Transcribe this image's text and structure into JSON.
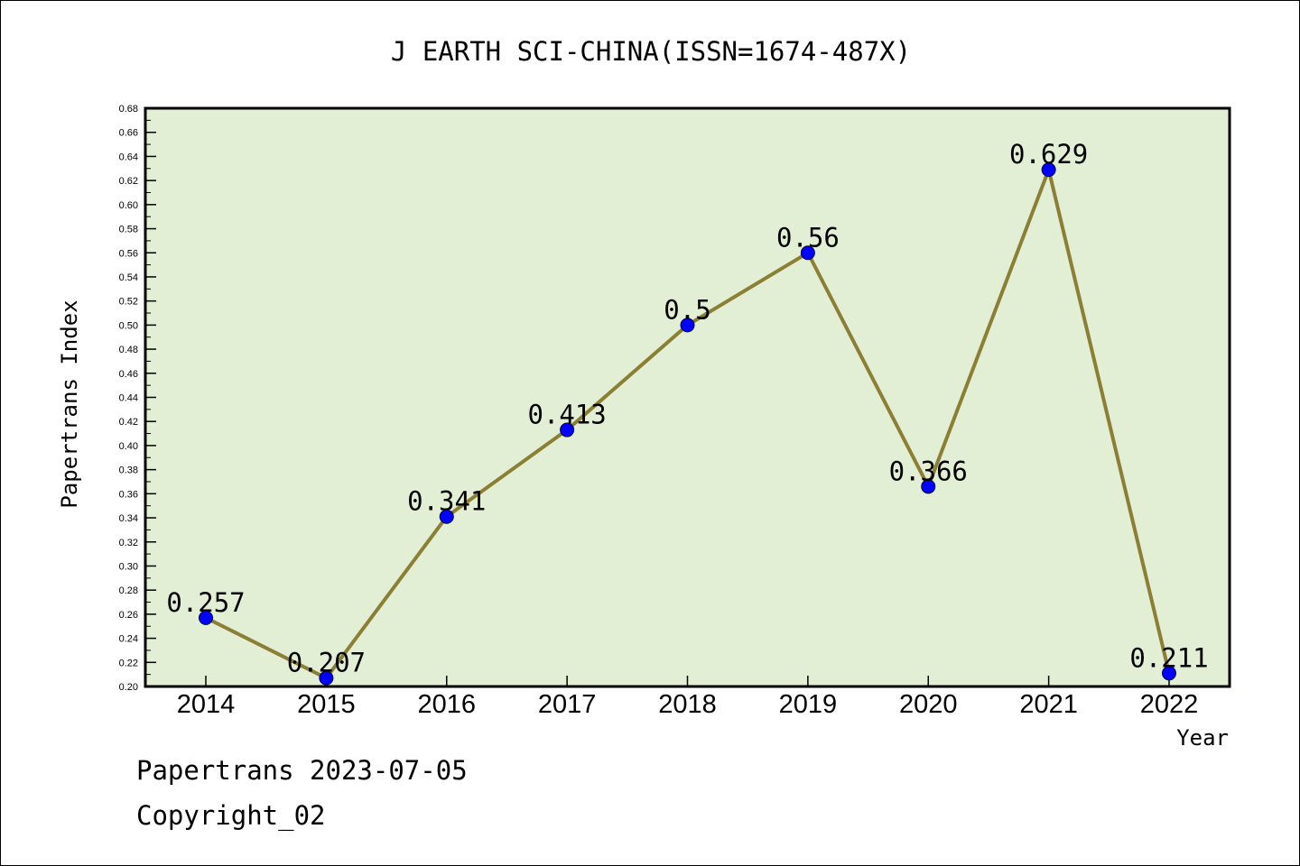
{
  "footer": {
    "line1": "Papertrans 2023-07-05",
    "line2": "Copyright_02"
  },
  "chart_data": {
    "type": "line",
    "title": "J EARTH SCI-CHINA(ISSN=1674-487X)",
    "xlabel": "Year",
    "ylabel": "Papertrans Index",
    "ylim": [
      0.2,
      0.68
    ],
    "ytick_step": 0.02,
    "categories": [
      "2014",
      "2015",
      "2016",
      "2017",
      "2018",
      "2019",
      "2020",
      "2021",
      "2022"
    ],
    "series": [
      {
        "values": [
          0.257,
          0.207,
          0.341,
          0.413,
          0.5,
          0.56,
          0.366,
          0.629,
          0.211
        ],
        "labels": [
          "0.257",
          "0.207",
          "0.341",
          "0.413",
          "0.5",
          "0.56",
          "0.366",
          "0.629",
          "0.211"
        ]
      }
    ],
    "grid": false,
    "colors": {
      "plot_background": "#e2efd4",
      "line": "#8b7f35",
      "marker": "#0000ff"
    }
  }
}
